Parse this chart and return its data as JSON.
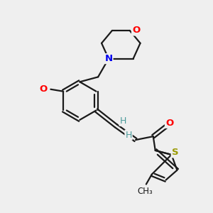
{
  "background_color": "#efefef",
  "bond_color": "#1a1a1a",
  "atom_colors": {
    "O": "#ff0000",
    "N": "#0000ee",
    "S": "#999900",
    "H": "#4a9a9a",
    "C": "#1a1a1a"
  },
  "figsize": [
    3.0,
    3.0
  ],
  "dpi": 100,
  "lw": 1.6
}
